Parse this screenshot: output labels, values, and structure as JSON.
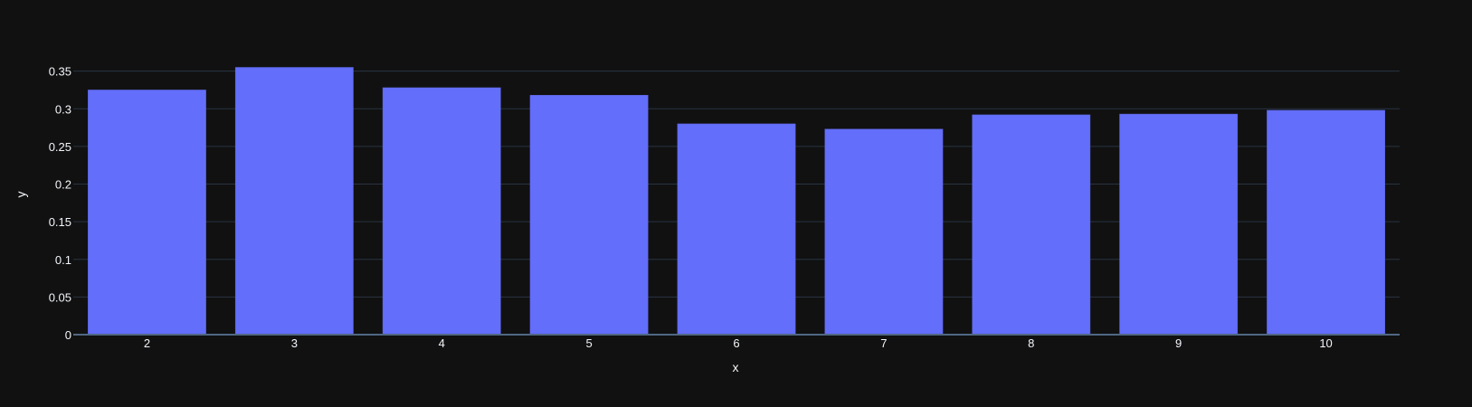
{
  "chart_data": {
    "type": "bar",
    "title": "",
    "xlabel": "x",
    "ylabel": "y",
    "categories": [
      "2",
      "3",
      "4",
      "5",
      "6",
      "7",
      "8",
      "9",
      "10"
    ],
    "values": [
      0.325,
      0.355,
      0.328,
      0.318,
      0.28,
      0.273,
      0.292,
      0.293,
      0.298
    ],
    "ylim": [
      0,
      0.37
    ],
    "yticks": [
      0,
      0.05,
      0.1,
      0.15,
      0.2,
      0.25,
      0.3,
      0.35
    ],
    "ytick_labels": [
      "0",
      "0.05",
      "0.1",
      "0.15",
      "0.2",
      "0.25",
      "0.3",
      "0.35"
    ],
    "grid": true,
    "legend": "none",
    "colors": {
      "background": "#111111",
      "bar": "#636efa",
      "grid": "#283442",
      "text": "#f2f5fa"
    }
  }
}
